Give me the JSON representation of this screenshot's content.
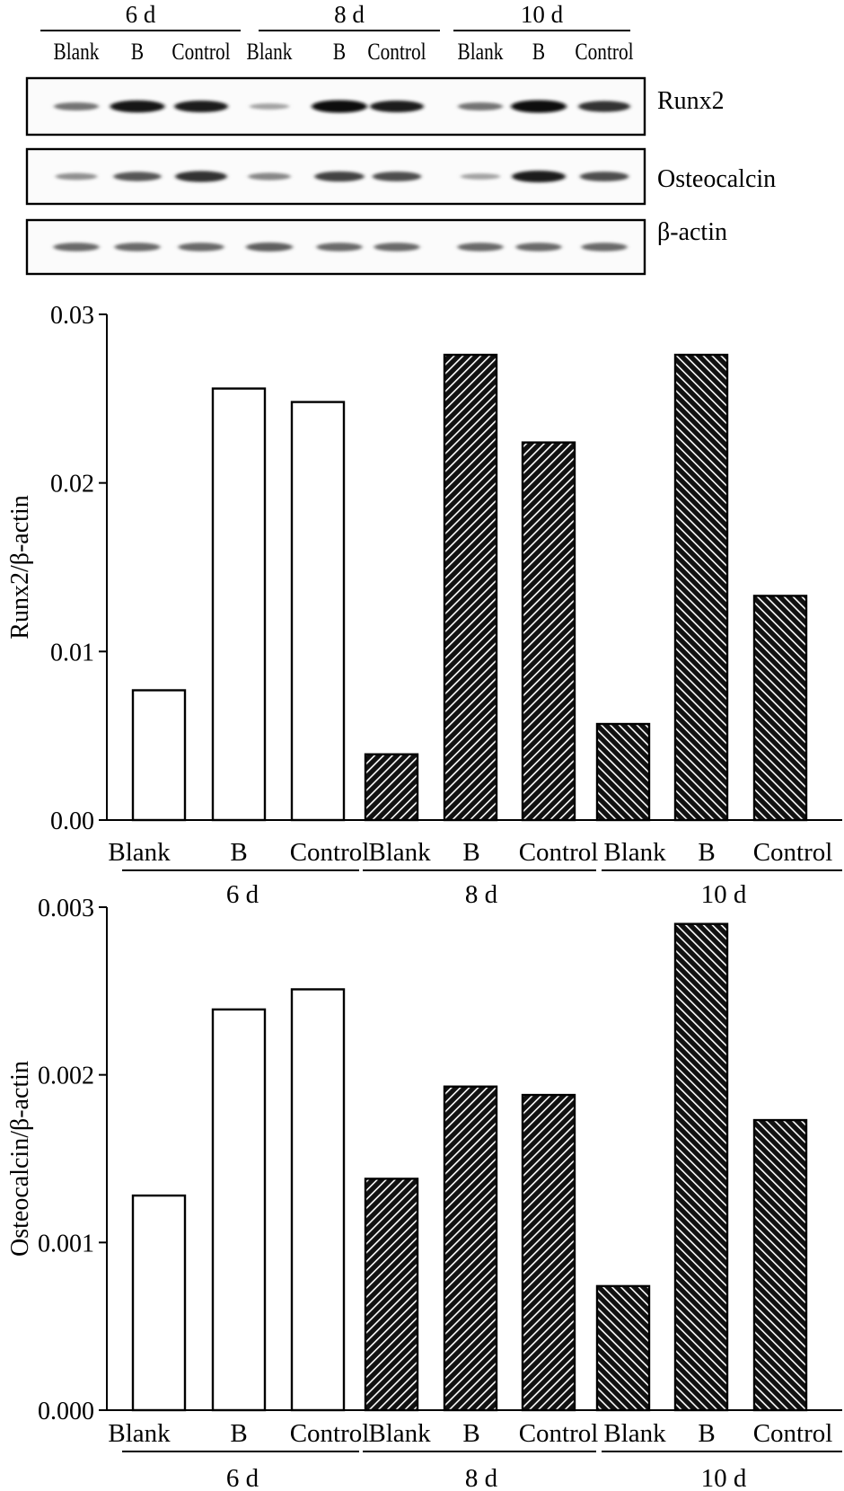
{
  "blot": {
    "time_groups": [
      {
        "label": "6 d",
        "lanes": [
          "Blank",
          "B",
          "Control"
        ]
      },
      {
        "label": "8 d",
        "lanes": [
          "Blank",
          "B",
          "Control"
        ]
      },
      {
        "label": "10 d",
        "lanes": [
          "Blank",
          "B",
          "Control"
        ]
      }
    ],
    "rows": [
      {
        "label": "Runx2",
        "intensity": [
          0.45,
          0.95,
          0.9,
          0.2,
          1.0,
          0.9,
          0.45,
          1.0,
          0.8
        ]
      },
      {
        "label": "Osteocalcin",
        "intensity": [
          0.3,
          0.6,
          0.8,
          0.35,
          0.7,
          0.65,
          0.2,
          0.9,
          0.65
        ]
      },
      {
        "label": "β-actin",
        "intensity": [
          0.5,
          0.5,
          0.5,
          0.55,
          0.5,
          0.5,
          0.5,
          0.5,
          0.5
        ]
      }
    ]
  },
  "chart_data": [
    {
      "type": "bar",
      "ylabel": "Runx2/β-actin",
      "ylim": [
        0,
        0.03
      ],
      "yticks": [
        "0.00",
        "0.01",
        "0.02",
        "0.03"
      ],
      "ytick_values": [
        0,
        0.01,
        0.02,
        0.03
      ],
      "groups": [
        {
          "label": "6 d",
          "pattern": "open",
          "categories": [
            "Blank",
            "B",
            "Control"
          ],
          "values": [
            0.0077,
            0.0256,
            0.0248
          ]
        },
        {
          "label": "8 d",
          "pattern": "hatch-up",
          "categories": [
            "Blank",
            "B",
            "Control"
          ],
          "values": [
            0.0039,
            0.0276,
            0.0224
          ]
        },
        {
          "label": "10 d",
          "pattern": "hatch-down",
          "categories": [
            "Blank",
            "B",
            "Control"
          ],
          "values": [
            0.0057,
            0.0276,
            0.0133
          ]
        }
      ]
    },
    {
      "type": "bar",
      "ylabel": "Osteocalcin/β-actin",
      "ylim": [
        0,
        0.003
      ],
      "yticks": [
        "0.000",
        "0.001",
        "0.002",
        "0.003"
      ],
      "ytick_values": [
        0,
        0.001,
        0.002,
        0.003
      ],
      "groups": [
        {
          "label": "6 d",
          "pattern": "open",
          "categories": [
            "Blank",
            "B",
            "Control"
          ],
          "values": [
            0.00128,
            0.00239,
            0.00251
          ]
        },
        {
          "label": "8 d",
          "pattern": "hatch-up",
          "categories": [
            "Blank",
            "B",
            "Control"
          ],
          "values": [
            0.00138,
            0.00193,
            0.00188
          ]
        },
        {
          "label": "10 d",
          "pattern": "hatch-down",
          "categories": [
            "Blank",
            "B",
            "Control"
          ],
          "values": [
            0.00074,
            0.0029,
            0.00173
          ]
        }
      ]
    }
  ]
}
